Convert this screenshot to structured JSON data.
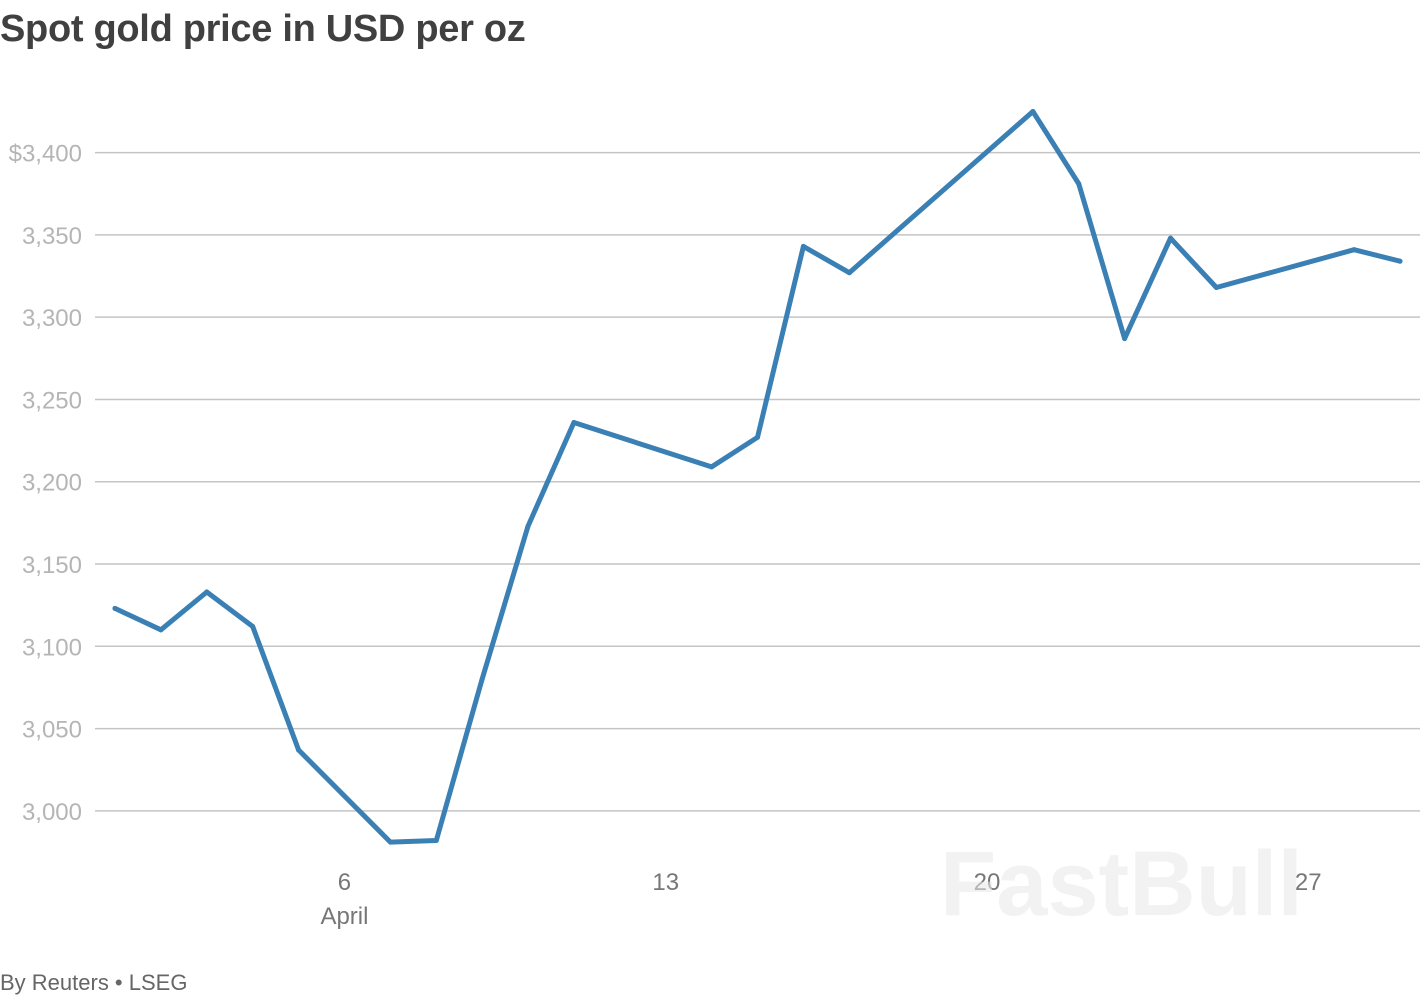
{
  "chart_data": {
    "type": "line",
    "title": "Spot gold price in USD per oz",
    "source": "By Reuters • LSEG",
    "watermark": "FastBull",
    "line_color": "#3a80b4",
    "ylim": [
      2975,
      3435
    ],
    "grid": true,
    "y_ticks": [
      {
        "value": 3400,
        "label": "$3,400"
      },
      {
        "value": 3350,
        "label": "3,350"
      },
      {
        "value": 3300,
        "label": "3,300"
      },
      {
        "value": 3250,
        "label": "3,250"
      },
      {
        "value": 3200,
        "label": "3,200"
      },
      {
        "value": 3150,
        "label": "3,150"
      },
      {
        "value": 3100,
        "label": "3,100"
      },
      {
        "value": 3050,
        "label": "3,050"
      },
      {
        "value": 3000,
        "label": "3,000"
      }
    ],
    "x_ticks": [
      {
        "date": "2025-04-06",
        "label": "6",
        "sublabel": "April"
      },
      {
        "date": "2025-04-13",
        "label": "13"
      },
      {
        "date": "2025-04-20",
        "label": "20"
      },
      {
        "date": "2025-04-27",
        "label": "27"
      }
    ],
    "series": [
      {
        "points": [
          {
            "x": "2025-04-01",
            "y": 3123
          },
          {
            "x": "2025-04-02",
            "y": 3110
          },
          {
            "x": "2025-04-03",
            "y": 3133
          },
          {
            "x": "2025-04-04",
            "y": 3112
          },
          {
            "x": "2025-04-05",
            "y": 3037
          },
          {
            "x": "2025-04-07",
            "y": 2981
          },
          {
            "x": "2025-04-08",
            "y": 2982
          },
          {
            "x": "2025-04-09",
            "y": 3080
          },
          {
            "x": "2025-04-10",
            "y": 3173
          },
          {
            "x": "2025-04-11",
            "y": 3236
          },
          {
            "x": "2025-04-14",
            "y": 3209
          },
          {
            "x": "2025-04-15",
            "y": 3227
          },
          {
            "x": "2025-04-16",
            "y": 3343
          },
          {
            "x": "2025-04-17",
            "y": 3327
          },
          {
            "x": "2025-04-21",
            "y": 3425
          },
          {
            "x": "2025-04-22",
            "y": 3381
          },
          {
            "x": "2025-04-23",
            "y": 3287
          },
          {
            "x": "2025-04-24",
            "y": 3348
          },
          {
            "x": "2025-04-25",
            "y": 3318
          },
          {
            "x": "2025-04-28",
            "y": 3341
          },
          {
            "x": "2025-04-29",
            "y": 3334
          }
        ]
      }
    ]
  }
}
